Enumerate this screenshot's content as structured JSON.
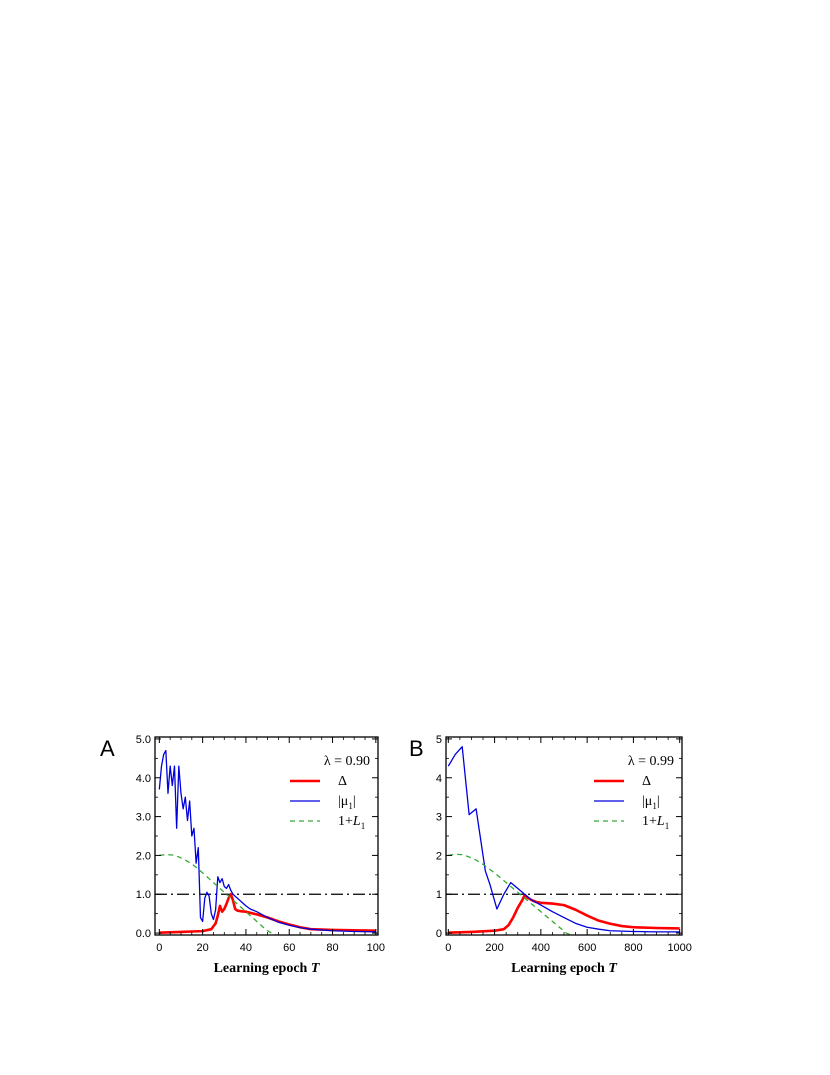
{
  "chart_data": [
    {
      "type": "line",
      "panel_label": "A",
      "annotation": "λ = 0.90",
      "xlabel": "Learning epoch",
      "xlabel_var": "T",
      "ylabel": "",
      "xlim": [
        -2,
        101
      ],
      "ylim": [
        -0.05,
        5.05
      ],
      "xticks": [
        0,
        20,
        40,
        60,
        80,
        100
      ],
      "xtick_labels": [
        "0",
        "20",
        "40",
        "60",
        "80",
        "100"
      ],
      "yticks": [
        0,
        1,
        2,
        3,
        4,
        5
      ],
      "ytick_labels": [
        "0.0",
        "1.0",
        "2.0",
        "3.0",
        "4.0",
        "5.0"
      ],
      "reference_line": {
        "y": 1,
        "style": "dash-dot",
        "color": "#000000"
      },
      "legend": {
        "placement": "top-right",
        "box": false
      },
      "series": [
        {
          "name": "Δ",
          "name_sub": "",
          "color": "#ff0000",
          "width": 2.6,
          "dash": "",
          "x": [
            0,
            5,
            10,
            15,
            20,
            24,
            26,
            27,
            28,
            29,
            30,
            31,
            32,
            33,
            34,
            35,
            36,
            38,
            40,
            45,
            50,
            55,
            60,
            65,
            70,
            80,
            90,
            100
          ],
          "y": [
            0.01,
            0.02,
            0.03,
            0.04,
            0.05,
            0.1,
            0.25,
            0.45,
            0.7,
            0.55,
            0.62,
            0.75,
            0.9,
            1.0,
            0.85,
            0.62,
            0.58,
            0.56,
            0.55,
            0.48,
            0.4,
            0.3,
            0.22,
            0.15,
            0.1,
            0.08,
            0.07,
            0.06
          ]
        },
        {
          "name": "|μ",
          "name_sub": "1",
          "name_end": "|",
          "color": "#0000dd",
          "width": 1.3,
          "dash": "",
          "x": [
            0,
            1,
            2,
            3,
            4,
            5,
            6,
            7,
            8,
            9,
            10,
            11,
            12,
            13,
            14,
            15,
            16,
            17,
            18,
            19,
            20,
            21,
            22,
            23,
            24,
            25,
            26,
            27,
            28,
            29,
            30,
            31,
            32,
            33,
            34,
            35,
            36,
            37,
            38,
            40,
            42,
            45,
            50,
            55,
            60,
            65,
            70,
            80,
            90,
            100
          ],
          "y": [
            3.7,
            4.3,
            4.6,
            4.7,
            3.6,
            4.3,
            3.8,
            4.3,
            2.7,
            4.3,
            3.6,
            3.2,
            3.5,
            2.9,
            3.4,
            2.5,
            2.7,
            1.8,
            2.2,
            0.4,
            0.3,
            0.9,
            1.05,
            0.95,
            0.5,
            0.35,
            0.6,
            1.45,
            1.3,
            1.4,
            1.2,
            1.15,
            1.25,
            1.1,
            1.0,
            0.95,
            0.9,
            0.85,
            0.8,
            0.7,
            0.62,
            0.55,
            0.4,
            0.28,
            0.2,
            0.14,
            0.1,
            0.06,
            0.04,
            0.03
          ]
        },
        {
          "name": "1+",
          "name_italic": "L",
          "name_sub": "1",
          "color": "#33aa33",
          "width": 1.3,
          "dash": "5,4",
          "x": [
            0,
            3,
            6,
            9,
            12,
            15,
            18,
            21,
            24,
            27,
            30,
            33,
            36,
            39,
            42,
            45,
            48,
            51,
            54
          ],
          "y": [
            2.0,
            2.02,
            2.01,
            1.96,
            1.88,
            1.78,
            1.65,
            1.5,
            1.35,
            1.2,
            1.05,
            0.9,
            0.75,
            0.6,
            0.45,
            0.3,
            0.15,
            0.02,
            -0.05
          ]
        }
      ]
    },
    {
      "type": "line",
      "panel_label": "B",
      "annotation": "λ = 0.99",
      "xlabel": "Learning epoch",
      "xlabel_var": "T",
      "ylabel": "",
      "xlim": [
        -10,
        1010
      ],
      "ylim": [
        -0.05,
        5.05
      ],
      "xticks": [
        0,
        200,
        400,
        600,
        800,
        1000
      ],
      "xtick_labels": [
        "0",
        "200",
        "400",
        "600",
        "800",
        "1000"
      ],
      "yticks": [
        0,
        1,
        2,
        3,
        4,
        5
      ],
      "ytick_labels": [
        "0",
        "1",
        "2",
        "3",
        "4",
        "5"
      ],
      "reference_line": {
        "y": 1,
        "style": "dash-dot",
        "color": "#000000"
      },
      "legend": {
        "placement": "top-right",
        "box": false
      },
      "series": [
        {
          "name": "Δ",
          "name_sub": "",
          "color": "#ff0000",
          "width": 2.6,
          "dash": "",
          "x": [
            0,
            100,
            200,
            240,
            260,
            280,
            300,
            320,
            330,
            340,
            360,
            380,
            400,
            450,
            500,
            550,
            600,
            650,
            700,
            750,
            800,
            900,
            1000
          ],
          "y": [
            0.01,
            0.03,
            0.06,
            0.1,
            0.2,
            0.4,
            0.65,
            0.85,
            0.98,
            0.92,
            0.85,
            0.8,
            0.78,
            0.76,
            0.72,
            0.6,
            0.45,
            0.32,
            0.24,
            0.18,
            0.15,
            0.13,
            0.12
          ]
        },
        {
          "name": "|μ",
          "name_sub": "1",
          "name_end": "|",
          "color": "#0000dd",
          "width": 1.3,
          "dash": "",
          "x": [
            0,
            30,
            60,
            90,
            120,
            140,
            160,
            180,
            210,
            240,
            270,
            300,
            330,
            360,
            400,
            450,
            500,
            550,
            600,
            650,
            700,
            800,
            900,
            1000
          ],
          "y": [
            4.3,
            4.6,
            4.8,
            3.05,
            3.2,
            2.4,
            1.6,
            1.25,
            0.62,
            1.0,
            1.3,
            1.15,
            1.0,
            0.85,
            0.72,
            0.55,
            0.4,
            0.25,
            0.15,
            0.1,
            0.06,
            0.04,
            0.03,
            0.03
          ]
        },
        {
          "name": "1+",
          "name_italic": "L",
          "name_sub": "1",
          "color": "#33aa33",
          "width": 1.3,
          "dash": "5,4",
          "x": [
            0,
            30,
            60,
            90,
            120,
            150,
            180,
            210,
            240,
            270,
            300,
            330,
            360,
            390,
            420,
            450,
            480,
            510,
            530
          ],
          "y": [
            2.0,
            2.03,
            2.02,
            1.96,
            1.88,
            1.77,
            1.64,
            1.5,
            1.35,
            1.2,
            1.05,
            0.9,
            0.75,
            0.6,
            0.45,
            0.3,
            0.15,
            0.0,
            -0.05
          ]
        }
      ]
    }
  ]
}
